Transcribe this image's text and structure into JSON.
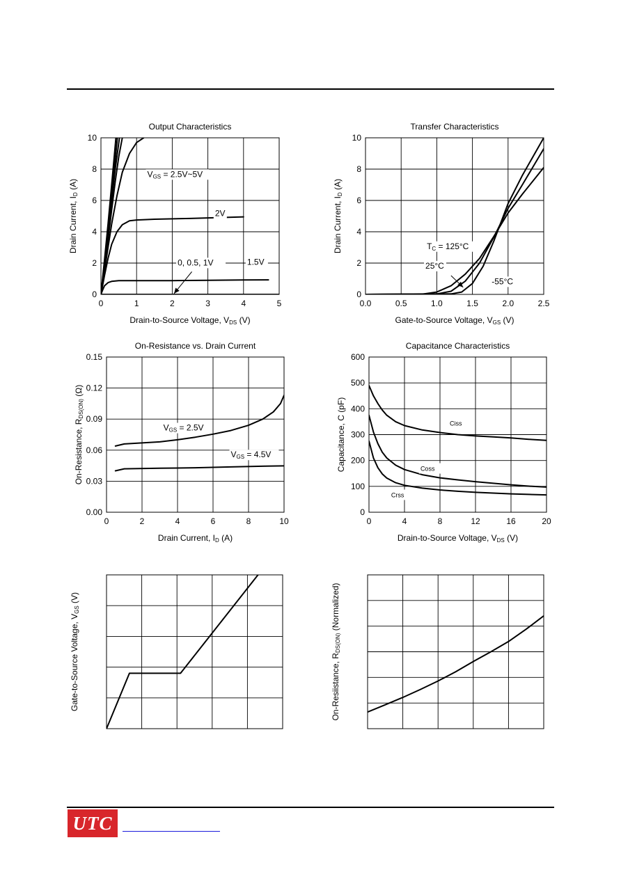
{
  "logo": {
    "text": "UTC",
    "color": "#d8262b"
  },
  "footer_link": {
    "color": "#1a1adc"
  },
  "chart_data": [
    {
      "id": "output",
      "type": "line",
      "title": "Output Characteristics",
      "xlabel": {
        "main": "Drain-to-Source Voltage, V",
        "sub": "DS",
        "tail": "  (V)"
      },
      "ylabel": {
        "main": "Drain Current, I",
        "sub": "D",
        "tail": " (A)"
      },
      "xlim": [
        0,
        5
      ],
      "ylim": [
        0,
        10
      ],
      "xticks": [
        0,
        1,
        2,
        3,
        4,
        5
      ],
      "yticks": [
        0,
        2,
        4,
        6,
        8,
        10
      ],
      "xtick_labels": [
        "0",
        "1",
        "2",
        "3",
        "4",
        "5"
      ],
      "ytick_labels": [
        "0",
        "2",
        "4",
        "6",
        "8",
        "10"
      ],
      "grid": true,
      "series": [
        {
          "points": [
            [
              0,
              0
            ],
            [
              0.1,
              2.2
            ],
            [
              0.2,
              4.5
            ],
            [
              0.3,
              7.0
            ],
            [
              0.38,
              9.0
            ],
            [
              0.42,
              10
            ]
          ]
        },
        {
          "points": [
            [
              0,
              0
            ],
            [
              0.1,
              2.0
            ],
            [
              0.2,
              4.2
            ],
            [
              0.3,
              6.5
            ],
            [
              0.4,
              8.6
            ],
            [
              0.46,
              10
            ]
          ]
        },
        {
          "points": [
            [
              0,
              0
            ],
            [
              0.1,
              1.9
            ],
            [
              0.2,
              3.9
            ],
            [
              0.3,
              6.0
            ],
            [
              0.4,
              8.0
            ],
            [
              0.52,
              10
            ]
          ]
        },
        {
          "points": [
            [
              0,
              0
            ],
            [
              0.1,
              1.7
            ],
            [
              0.2,
              3.5
            ],
            [
              0.3,
              5.4
            ],
            [
              0.4,
              7.2
            ],
            [
              0.5,
              8.8
            ],
            [
              0.6,
              10
            ]
          ]
        },
        {
          "points": [
            [
              0,
              0
            ],
            [
              0.1,
              1.5
            ],
            [
              0.2,
              3.0
            ],
            [
              0.3,
              4.5
            ],
            [
              0.45,
              6.3
            ],
            [
              0.6,
              7.8
            ],
            [
              0.8,
              9.0
            ],
            [
              1.0,
              9.7
            ],
            [
              1.2,
              10
            ]
          ]
        },
        {
          "points": [
            [
              0,
              0
            ],
            [
              0.1,
              1.2
            ],
            [
              0.2,
              2.3
            ],
            [
              0.3,
              3.2
            ],
            [
              0.45,
              4.0
            ],
            [
              0.6,
              4.45
            ],
            [
              0.8,
              4.7
            ],
            [
              1.0,
              4.75
            ],
            [
              1.5,
              4.8
            ],
            [
              2.5,
              4.85
            ],
            [
              4.0,
              4.95
            ]
          ]
        },
        {
          "points": [
            [
              0,
              0
            ],
            [
              0.05,
              0.3
            ],
            [
              0.1,
              0.55
            ],
            [
              0.2,
              0.75
            ],
            [
              0.3,
              0.83
            ],
            [
              0.5,
              0.88
            ],
            [
              1.0,
              0.88
            ],
            [
              2.0,
              0.88
            ],
            [
              3.0,
              0.9
            ],
            [
              4.0,
              0.92
            ],
            [
              4.7,
              0.93
            ]
          ]
        },
        {
          "points": [
            [
              0,
              0
            ],
            [
              5,
              0
            ]
          ]
        }
      ],
      "annotations": [
        {
          "text": "V",
          "sub": "GS",
          "tail": " = 2.5V~5V",
          "x": 1.3,
          "y": 7.5
        },
        {
          "text": "2V",
          "sub": "",
          "tail": "",
          "x": 3.2,
          "y": 5.0
        },
        {
          "text": "1.5V",
          "sub": "",
          "tail": "",
          "x": 4.1,
          "y": 1.9
        },
        {
          "text": "0, 0.5, 1V",
          "sub": "",
          "tail": "",
          "x": 2.15,
          "y": 1.85
        }
      ],
      "arrows": [
        {
          "from": [
            2.55,
            1.45
          ],
          "to": [
            2.05,
            0.05
          ]
        }
      ]
    },
    {
      "id": "transfer",
      "type": "line",
      "title": "Transfer Characteristics",
      "xlabel": {
        "main": "Gate-to-Source Voltage, V",
        "sub": "GS",
        "tail": "  (V)"
      },
      "ylabel": {
        "main": "Drain Current, I",
        "sub": "D",
        "tail": " (A)"
      },
      "xlim": [
        0,
        2.5
      ],
      "ylim": [
        0,
        10
      ],
      "xticks": [
        0,
        0.5,
        1.0,
        1.5,
        2.0,
        2.5
      ],
      "yticks": [
        0,
        2,
        4,
        6,
        8,
        10
      ],
      "xtick_labels": [
        "0.0",
        "0.5",
        "1.0",
        "1.5",
        "2.0",
        "2.5"
      ],
      "ytick_labels": [
        "0",
        "2",
        "4",
        "6",
        "8",
        "10"
      ],
      "grid": true,
      "series": [
        {
          "name": "T = 125°C",
          "points": [
            [
              0,
              0
            ],
            [
              0.8,
              0.02
            ],
            [
              1.0,
              0.15
            ],
            [
              1.2,
              0.55
            ],
            [
              1.4,
              1.3
            ],
            [
              1.6,
              2.3
            ],
            [
              1.8,
              3.7
            ],
            [
              2.0,
              5.2
            ],
            [
              2.2,
              6.4
            ],
            [
              2.5,
              8.1
            ]
          ]
        },
        {
          "name": "25°C",
          "points": [
            [
              0,
              0
            ],
            [
              1.0,
              0.03
            ],
            [
              1.2,
              0.2
            ],
            [
              1.4,
              0.85
            ],
            [
              1.6,
              2.0
            ],
            [
              1.8,
              3.65
            ],
            [
              2.0,
              5.5
            ],
            [
              2.2,
              7.0
            ],
            [
              2.5,
              9.3
            ]
          ]
        },
        {
          "name": "-55°C",
          "points": [
            [
              0,
              0
            ],
            [
              1.2,
              0.03
            ],
            [
              1.35,
              0.15
            ],
            [
              1.5,
              0.7
            ],
            [
              1.65,
              1.8
            ],
            [
              1.8,
              3.4
            ],
            [
              2.0,
              5.8
            ],
            [
              2.2,
              7.6
            ],
            [
              2.5,
              10.0
            ]
          ]
        }
      ],
      "annotations": [
        {
          "text": "T",
          "sub": "C",
          "tail": " = 125°C",
          "x": 0.86,
          "y": 2.9
        },
        {
          "text": "25°C",
          "sub": "",
          "tail": "",
          "x": 0.84,
          "y": 1.65
        },
        {
          "text": "-55°C",
          "sub": "",
          "tail": "",
          "x": 1.77,
          "y": 0.65
        }
      ],
      "arrows": [
        {
          "from": [
            1.2,
            1.2
          ],
          "to": [
            1.37,
            0.45
          ]
        }
      ]
    },
    {
      "id": "onres",
      "type": "line",
      "title": "On-Resistance vs. Drain Current",
      "xlabel": {
        "main": "Drain Current, I",
        "sub": "D",
        "tail": " (A)"
      },
      "ylabel": {
        "main": "On-Resistance, R",
        "sub": "DS(ON)",
        "tail": " (Ω)"
      },
      "xlim": [
        0,
        10
      ],
      "ylim": [
        0,
        0.15
      ],
      "xticks": [
        0,
        2,
        4,
        6,
        8,
        10
      ],
      "yticks": [
        0,
        0.03,
        0.06,
        0.09,
        0.12,
        0.15
      ],
      "xtick_labels": [
        "0",
        "2",
        "4",
        "6",
        "8",
        "10"
      ],
      "ytick_labels": [
        "0.00",
        "0.03",
        "0.06",
        "0.09",
        "0.12",
        "0.15"
      ],
      "grid": true,
      "series": [
        {
          "name": "V = 2.5V",
          "points": [
            [
              0.5,
              0.064
            ],
            [
              1.0,
              0.066
            ],
            [
              2,
              0.067
            ],
            [
              3,
              0.068
            ],
            [
              4,
              0.07
            ],
            [
              5,
              0.0725
            ],
            [
              6,
              0.0755
            ],
            [
              7,
              0.079
            ],
            [
              8,
              0.084
            ],
            [
              8.8,
              0.09
            ],
            [
              9.4,
              0.097
            ],
            [
              9.8,
              0.105
            ],
            [
              10,
              0.113
            ]
          ]
        },
        {
          "name": "V = 4.5V",
          "points": [
            [
              0.5,
              0.04
            ],
            [
              1.0,
              0.042
            ],
            [
              3,
              0.0425
            ],
            [
              5,
              0.043
            ],
            [
              7,
              0.0438
            ],
            [
              9,
              0.0445
            ],
            [
              10,
              0.0448
            ]
          ]
        }
      ],
      "annotations": [
        {
          "text": "V",
          "sub": "GS",
          "tail": " = 2.5V",
          "x": 3.2,
          "y": 0.079
        },
        {
          "text": "V",
          "sub": "GS",
          "tail": " = 4.5V",
          "x": 7.0,
          "y": 0.053
        }
      ]
    },
    {
      "id": "capacitance",
      "type": "line",
      "title": "Capacitance Characteristics",
      "xlabel": {
        "main": "Drain-to-Source Voltage, V",
        "sub": "DS",
        "tail": " (V)"
      },
      "ylabel": {
        "main": "Capacitance, C (pF)",
        "sub": "",
        "tail": ""
      },
      "xlim": [
        0,
        20
      ],
      "ylim": [
        0,
        600
      ],
      "xticks": [
        0,
        4,
        8,
        12,
        16,
        20
      ],
      "yticks": [
        0,
        100,
        200,
        300,
        400,
        500,
        600
      ],
      "xtick_labels": [
        "0",
        "4",
        "8",
        "12",
        "16",
        "20"
      ],
      "ytick_labels": [
        "0",
        "100",
        "200",
        "300",
        "400",
        "500",
        "600"
      ],
      "grid": true,
      "series": [
        {
          "name": "Ciss",
          "points": [
            [
              0,
              490
            ],
            [
              0.5,
              450
            ],
            [
              1,
              420
            ],
            [
              1.5,
              395
            ],
            [
              2,
              375
            ],
            [
              3,
              350
            ],
            [
              4,
              335
            ],
            [
              6,
              318
            ],
            [
              8,
              308
            ],
            [
              10,
              300
            ],
            [
              12,
              295
            ],
            [
              14,
              291
            ],
            [
              16,
              287
            ],
            [
              18,
              282
            ],
            [
              20,
              278
            ]
          ]
        },
        {
          "name": "Coss",
          "points": [
            [
              0,
              375
            ],
            [
              0.5,
              310
            ],
            [
              1,
              265
            ],
            [
              1.5,
              232
            ],
            [
              2,
              210
            ],
            [
              3,
              182
            ],
            [
              4,
              165
            ],
            [
              6,
              145
            ],
            [
              8,
              133
            ],
            [
              10,
              125
            ],
            [
              12,
              118
            ],
            [
              14,
              112
            ],
            [
              16,
              106
            ],
            [
              18,
              101
            ],
            [
              20,
              97
            ]
          ]
        },
        {
          "name": "Crss",
          "points": [
            [
              0,
              275
            ],
            [
              0.5,
              210
            ],
            [
              1,
              172
            ],
            [
              1.5,
              148
            ],
            [
              2,
              132
            ],
            [
              3,
              114
            ],
            [
              4,
              104
            ],
            [
              6,
              93
            ],
            [
              8,
              86
            ],
            [
              10,
              81
            ],
            [
              12,
              77
            ],
            [
              14,
              74
            ],
            [
              16,
              71
            ],
            [
              18,
              69
            ],
            [
              20,
              67
            ]
          ]
        }
      ],
      "annotations": [
        {
          "text": "Ciss",
          "sub": "",
          "tail": "",
          "x": 9.1,
          "y": 335,
          "small": true
        },
        {
          "text": "Coss",
          "sub": "",
          "tail": "",
          "x": 5.8,
          "y": 160,
          "small": true
        },
        {
          "text": "Crss",
          "sub": "",
          "tail": "",
          "x": 2.5,
          "y": 58,
          "small": true
        }
      ]
    },
    {
      "id": "gatecharge",
      "type": "line",
      "title": "",
      "xlabel": {
        "main": "",
        "sub": "",
        "tail": ""
      },
      "ylabel": {
        "main": "Gate-to-Source Voltage, V",
        "sub": "GS",
        "tail": " (V)"
      },
      "xlim": [
        0,
        5
      ],
      "ylim": [
        0,
        5
      ],
      "xticks": [
        0,
        1,
        2,
        3,
        4,
        5
      ],
      "yticks": [
        0,
        1,
        2,
        3,
        4,
        5
      ],
      "xtick_labels": [],
      "ytick_labels": [],
      "grid": true,
      "series": [
        {
          "points": [
            [
              0,
              0
            ],
            [
              0.65,
              1.8
            ],
            [
              2.1,
              1.8
            ],
            [
              4.3,
              5.0
            ]
          ]
        }
      ],
      "annotations": []
    },
    {
      "id": "onres-temp",
      "type": "line",
      "title": "",
      "xlabel": {
        "main": "",
        "sub": "",
        "tail": ""
      },
      "ylabel": {
        "main": "On-Resiistance, R",
        "sub": "DS(ON)",
        "tail": " (Normalized)"
      },
      "xlim": [
        0,
        5
      ],
      "ylim": [
        0,
        6
      ],
      "xticks": [
        0,
        1,
        2,
        3,
        4,
        5
      ],
      "yticks": [
        0,
        1,
        2,
        3,
        4,
        5,
        6
      ],
      "xtick_labels": [],
      "ytick_labels": [],
      "grid": true,
      "series": [
        {
          "points": [
            [
              0,
              0.65
            ],
            [
              0.5,
              0.93
            ],
            [
              1,
              1.22
            ],
            [
              1.5,
              1.53
            ],
            [
              2,
              1.86
            ],
            [
              2.5,
              2.22
            ],
            [
              3,
              2.62
            ],
            [
              3.5,
              3.0
            ],
            [
              4,
              3.4
            ],
            [
              4.5,
              3.88
            ],
            [
              5,
              4.4
            ]
          ]
        }
      ],
      "annotations": []
    }
  ]
}
